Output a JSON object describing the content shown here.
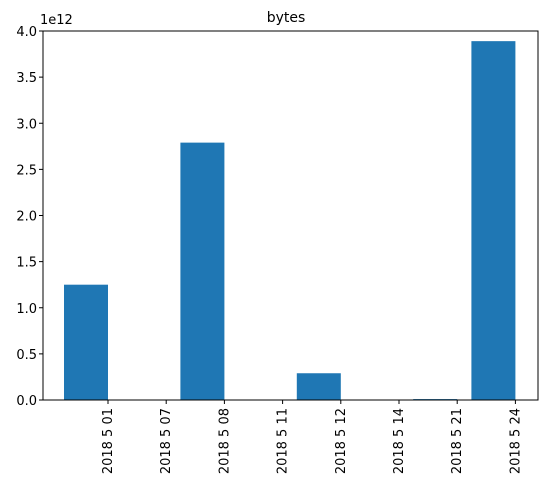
{
  "chart_data": {
    "type": "bar",
    "title": "bytes",
    "categories": [
      "2018 5 01",
      "2018 5 07",
      "2018 5 08",
      "2018 5 11",
      "2018 5 12",
      "2018 5 14",
      "2018 5 21",
      "2018 5 24"
    ],
    "values": [
      1250000000000.0,
      0,
      2790000000000.0,
      0,
      290000000000.0,
      0,
      10000000000.0,
      3890000000000.0
    ],
    "ylim": [
      0,
      4000000000000.0
    ],
    "yticks": [
      0.0,
      0.5,
      1.0,
      1.5,
      2.0,
      2.5,
      3.0,
      3.5,
      4.0
    ],
    "ytick_labels": [
      "0.0",
      "0.5",
      "1.0",
      "1.5",
      "2.0",
      "2.5",
      "3.0",
      "3.5",
      "4.0"
    ],
    "y_offset_label": "1e12",
    "xlabel": "",
    "ylabel": "",
    "grid": false,
    "bar_color": "#1f77b4"
  }
}
